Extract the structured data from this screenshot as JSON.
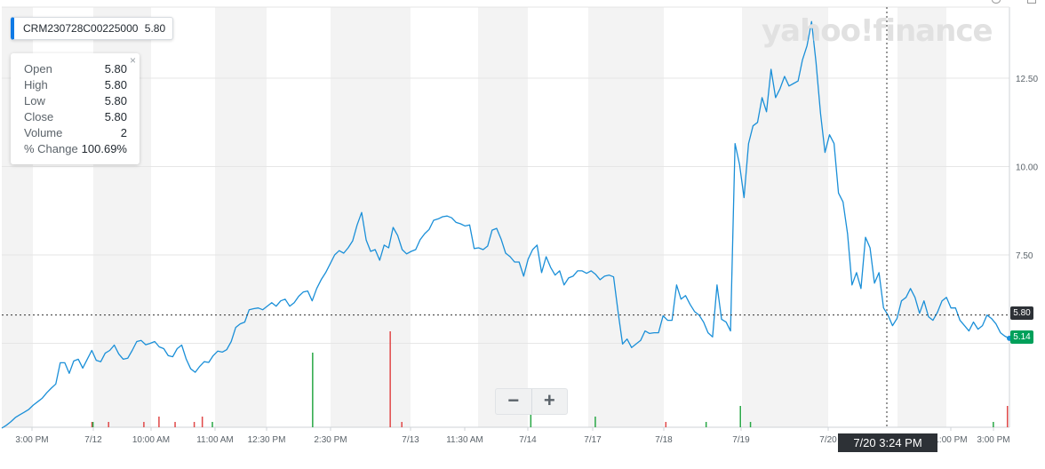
{
  "symbol": {
    "name": "CRM230728C00225000",
    "price": "5.80"
  },
  "ohlc_panel": {
    "rows": [
      {
        "label": "Open",
        "value": "5.80"
      },
      {
        "label": "High",
        "value": "5.80"
      },
      {
        "label": "Low",
        "value": "5.80"
      },
      {
        "label": "Close",
        "value": "5.80"
      },
      {
        "label": "Volume",
        "value": "2"
      },
      {
        "label": "% Change",
        "value": "100.69%"
      }
    ],
    "close_icon": "×"
  },
  "watermark": "yahoo!finance",
  "zoom": {
    "minus": "−",
    "plus": "+"
  },
  "crosshair": {
    "time_label": "7/20 3:24 PM",
    "price_label": "5.80"
  },
  "last_price_label": "5.14",
  "colors": {
    "line": "#1a8fd8",
    "last_price_tag": "#00a05a",
    "crosshair_tag": "#2d3136",
    "volume_up": "#28a745",
    "volume_down": "#e04848",
    "band": "#f3f3f3"
  },
  "chart_data": {
    "type": "line",
    "title": "",
    "xlabel": "",
    "ylabel": "",
    "ylim": [
      2.4,
      14.5
    ],
    "y_ticks": [
      "12.50",
      "10.00",
      "7.50"
    ],
    "x_tick_labels": [
      "3:00 PM",
      "7/12",
      "10:00 AM",
      "11:00 AM",
      "12:30 PM",
      "2:30 PM",
      "7/13",
      "11:30 AM",
      "7/14",
      "7/17",
      "7/18",
      "7/19",
      "7/20",
      "1:00 PM",
      "3:00 PM"
    ],
    "grid": true,
    "series": [
      {
        "values": [
          2.6,
          2.68,
          2.78,
          2.9,
          2.98,
          3.05,
          3.13,
          3.25,
          3.35,
          3.45,
          3.6,
          3.73,
          3.85,
          4.45,
          4.45,
          4.15,
          4.5,
          4.55,
          4.3,
          4.55,
          4.8,
          4.52,
          4.48,
          4.72,
          4.8,
          4.95,
          4.7,
          4.55,
          4.58,
          4.8,
          5.05,
          5.08,
          4.96,
          5.0,
          5.05,
          4.9,
          4.85,
          4.65,
          4.62,
          4.85,
          4.95,
          4.55,
          4.28,
          4.18,
          4.35,
          4.48,
          4.46,
          4.65,
          4.78,
          4.75,
          4.82,
          5.05,
          5.45,
          5.55,
          5.6,
          5.95,
          5.98,
          6.0,
          5.95,
          6.05,
          6.15,
          6.05,
          6.2,
          6.25,
          6.05,
          6.15,
          6.33,
          6.45,
          6.48,
          6.2,
          6.55,
          6.8,
          7.0,
          7.25,
          7.5,
          7.62,
          7.55,
          7.7,
          7.9,
          8.35,
          8.7,
          7.92,
          7.6,
          7.65,
          7.35,
          7.78,
          7.7,
          8.28,
          8.05,
          7.65,
          7.53,
          7.6,
          7.65,
          7.93,
          8.1,
          8.22,
          8.48,
          8.52,
          8.58,
          8.6,
          8.55,
          8.42,
          8.38,
          8.32,
          8.35,
          7.68,
          7.7,
          7.65,
          7.75,
          8.2,
          8.25,
          7.95,
          7.55,
          7.45,
          7.3,
          7.3,
          6.9,
          7.38,
          7.65,
          7.78,
          7.0,
          7.45,
          7.15,
          6.93,
          7.05,
          6.65,
          6.85,
          6.9,
          7.05,
          7.05,
          6.98,
          7.05,
          6.95,
          6.8,
          6.9,
          6.93,
          6.88,
          5.88,
          4.98,
          5.12,
          4.88,
          4.98,
          5.08,
          5.35,
          5.28,
          5.3,
          5.3,
          5.78,
          5.65,
          5.65,
          6.65,
          6.25,
          6.35,
          6.1,
          5.9,
          5.8,
          5.6,
          5.3,
          5.18,
          6.65,
          5.68,
          5.6,
          5.35,
          10.65,
          10.05,
          9.12,
          10.65,
          11.15,
          11.25,
          11.95,
          11.55,
          12.75,
          11.95,
          12.2,
          12.55,
          12.28,
          12.35,
          12.42,
          13.02,
          13.42,
          14.1,
          12.95,
          11.5,
          10.4,
          10.9,
          10.65,
          9.25,
          9.0,
          8.1,
          6.65,
          7.0,
          6.55,
          8.0,
          7.7,
          6.7,
          7.0,
          6.0,
          5.8,
          5.5,
          5.7,
          6.2,
          6.3,
          6.55,
          6.3,
          5.85,
          6.2,
          5.75,
          5.65,
          5.88,
          6.2,
          6.3,
          6.0,
          6.0,
          5.65,
          5.5,
          5.35,
          5.6,
          5.4,
          5.5,
          5.8,
          5.7,
          5.55,
          5.3,
          5.2,
          5.14
        ]
      }
    ],
    "volume": [
      {
        "x": 0.0895,
        "value": 1,
        "dir": "down"
      },
      {
        "x": 0.0905,
        "value": 1,
        "dir": "up"
      },
      {
        "x": 0.106,
        "value": 1,
        "dir": "down"
      },
      {
        "x": 0.141,
        "value": 1,
        "dir": "down"
      },
      {
        "x": 0.156,
        "value": 2,
        "dir": "down"
      },
      {
        "x": 0.172,
        "value": 1,
        "dir": "down"
      },
      {
        "x": 0.191,
        "value": 1,
        "dir": "down"
      },
      {
        "x": 0.199,
        "value": 2,
        "dir": "down"
      },
      {
        "x": 0.209,
        "value": 1,
        "dir": "up"
      },
      {
        "x": 0.3085,
        "value": 14,
        "dir": "up"
      },
      {
        "x": 0.3855,
        "value": 18,
        "dir": "down"
      },
      {
        "x": 0.397,
        "value": 1,
        "dir": "down"
      },
      {
        "x": 0.525,
        "value": 3,
        "dir": "up"
      },
      {
        "x": 0.589,
        "value": 2,
        "dir": "up"
      },
      {
        "x": 0.659,
        "value": 1,
        "dir": "down"
      },
      {
        "x": 0.699,
        "value": 1,
        "dir": "up"
      },
      {
        "x": 0.733,
        "value": 4,
        "dir": "up"
      },
      {
        "x": 0.743,
        "value": 1,
        "dir": "up"
      },
      {
        "x": 0.984,
        "value": 1,
        "dir": "up"
      },
      {
        "x": 0.998,
        "value": 4,
        "dir": "down"
      }
    ]
  }
}
